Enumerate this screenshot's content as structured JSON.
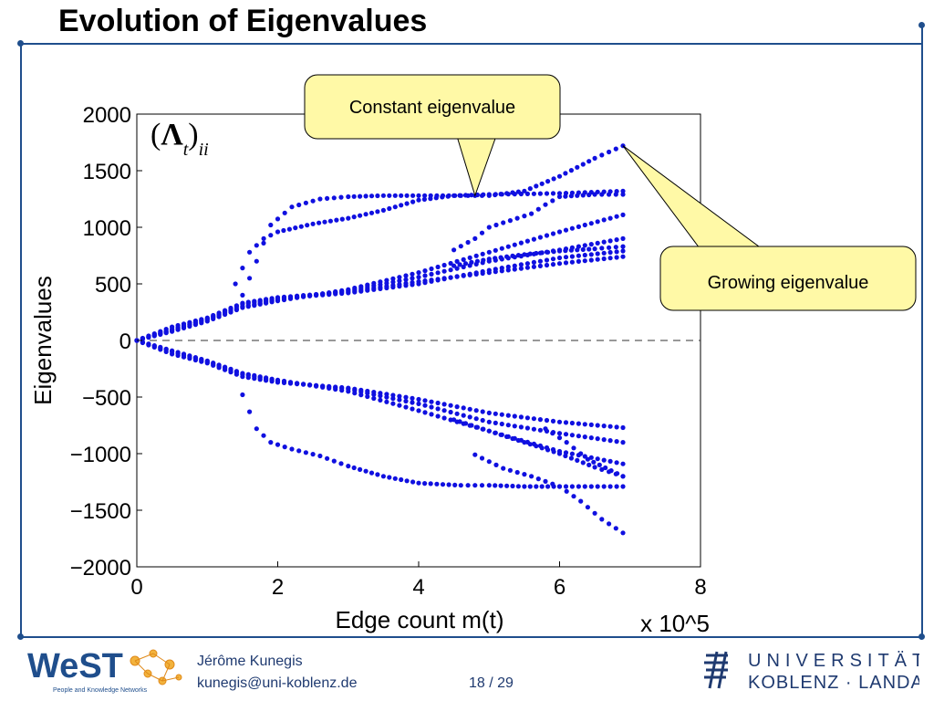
{
  "slide": {
    "title": "Evolution of Eigenvalues",
    "author": "Jérôme Kunegis",
    "email": "kunegis@uni-koblenz.de",
    "page": "18 / 29",
    "frame_color": "#1f4e8c"
  },
  "logos": {
    "west_text": "WeST",
    "west_tagline": "People and Knowledge Networks",
    "university_line1": "UNIVERSITÄT",
    "university_line2": "KOBLENZ · LANDAU"
  },
  "chart_data": {
    "type": "scatter",
    "symbol": "(Λt)ii",
    "xlabel": "Edge count m(t)",
    "x_multiplier": "x 10^5",
    "ylabel": "Eigenvalues",
    "xlim": [
      0,
      8
    ],
    "ylim": [
      -2000,
      2000
    ],
    "x_ticks": [
      0,
      2,
      4,
      6,
      8
    ],
    "y_ticks": [
      2000,
      1500,
      1000,
      500,
      0,
      -500,
      -1000,
      -1500,
      -2000
    ],
    "y_tick_labels": [
      "2000",
      "1500",
      "1000",
      "500",
      "0",
      "−500",
      "−1000",
      "−1500",
      "−2000"
    ],
    "zero_line": "dashed",
    "point_color": "#1010e0",
    "x_max_data": 6.9,
    "series": [
      {
        "points": [
          [
            0,
            0
          ],
          [
            0.5,
            120
          ],
          [
            1,
            200
          ],
          [
            1.5,
            330
          ],
          [
            2,
            380
          ],
          [
            3,
            430
          ],
          [
            4,
            520
          ],
          [
            5,
            600
          ],
          [
            6,
            680
          ],
          [
            6.9,
            740
          ]
        ]
      },
      {
        "points": [
          [
            0,
            0
          ],
          [
            0.5,
            100
          ],
          [
            1,
            190
          ],
          [
            1.5,
            320
          ],
          [
            2,
            370
          ],
          [
            3,
            420
          ],
          [
            4,
            500
          ],
          [
            5,
            620
          ],
          [
            6,
            730
          ],
          [
            6.9,
            790
          ]
        ]
      },
      {
        "points": [
          [
            0,
            0
          ],
          [
            0.5,
            90
          ],
          [
            1,
            185
          ],
          [
            1.5,
            300
          ],
          [
            2,
            360
          ],
          [
            3,
            440
          ],
          [
            4,
            560
          ],
          [
            5,
            700
          ],
          [
            6,
            800
          ],
          [
            6.9,
            900
          ]
        ]
      },
      {
        "points": [
          [
            0,
            0
          ],
          [
            0.5,
            80
          ],
          [
            1,
            170
          ],
          [
            1.5,
            290
          ],
          [
            2,
            350
          ],
          [
            3,
            450
          ],
          [
            4,
            600
          ],
          [
            5,
            780
          ],
          [
            6,
            960
          ],
          [
            6.9,
            1110
          ]
        ]
      },
      {
        "points": [
          [
            1.4,
            500
          ],
          [
            1.6,
            780
          ],
          [
            1.8,
            900
          ],
          [
            2,
            960
          ],
          [
            2.5,
            1030
          ],
          [
            3,
            1080
          ],
          [
            3.5,
            1150
          ],
          [
            4,
            1240
          ],
          [
            4.5,
            1280
          ],
          [
            5,
            1290
          ],
          [
            6,
            1300
          ],
          [
            6.9,
            1320
          ]
        ]
      },
      {
        "points": [
          [
            1.5,
            400
          ],
          [
            1.7,
            700
          ],
          [
            1.9,
            1020
          ],
          [
            2.2,
            1180
          ],
          [
            2.6,
            1250
          ],
          [
            3,
            1270
          ],
          [
            3.5,
            1280
          ],
          [
            4,
            1280
          ],
          [
            4.6,
            1280
          ],
          [
            5,
            1280
          ],
          [
            5.5,
            1320
          ],
          [
            6,
            1450
          ],
          [
            6.5,
            1610
          ],
          [
            6.9,
            1720
          ]
        ]
      },
      {
        "points": [
          [
            4.5,
            800
          ],
          [
            4.8,
            900
          ],
          [
            5,
            1000
          ],
          [
            5.3,
            1060
          ],
          [
            5.6,
            1120
          ],
          [
            5.8,
            1200
          ],
          [
            6,
            1270
          ],
          [
            6.5,
            1290
          ],
          [
            6.9,
            1290
          ]
        ]
      },
      {
        "points": [
          [
            4.5,
            660
          ],
          [
            5,
            720
          ],
          [
            5.5,
            760
          ],
          [
            6,
            790
          ],
          [
            6.5,
            810
          ],
          [
            6.9,
            830
          ]
        ]
      },
      {
        "points": [
          [
            0,
            0
          ],
          [
            0.5,
            -120
          ],
          [
            1,
            -200
          ],
          [
            1.5,
            -320
          ],
          [
            2,
            -370
          ],
          [
            3,
            -420
          ],
          [
            4,
            -520
          ],
          [
            5,
            -640
          ],
          [
            6,
            -720
          ],
          [
            6.9,
            -770
          ]
        ]
      },
      {
        "points": [
          [
            0,
            0
          ],
          [
            0.5,
            -100
          ],
          [
            1,
            -190
          ],
          [
            1.5,
            -300
          ],
          [
            2,
            -360
          ],
          [
            3,
            -430
          ],
          [
            4,
            -560
          ],
          [
            5,
            -720
          ],
          [
            6,
            -820
          ],
          [
            6.9,
            -900
          ]
        ]
      },
      {
        "points": [
          [
            0,
            0
          ],
          [
            0.5,
            -90
          ],
          [
            1,
            -180
          ],
          [
            1.5,
            -290
          ],
          [
            2,
            -350
          ],
          [
            3,
            -450
          ],
          [
            4,
            -620
          ],
          [
            5,
            -800
          ],
          [
            6,
            -980
          ],
          [
            6.9,
            -1090
          ]
        ]
      },
      {
        "points": [
          [
            1.5,
            -480
          ],
          [
            1.7,
            -780
          ],
          [
            1.9,
            -900
          ],
          [
            2.2,
            -960
          ],
          [
            2.6,
            -1020
          ],
          [
            3,
            -1110
          ],
          [
            3.5,
            -1200
          ],
          [
            4,
            -1260
          ],
          [
            4.6,
            -1280
          ],
          [
            5,
            -1280
          ],
          [
            5.5,
            -1290
          ],
          [
            6,
            -1290
          ],
          [
            6.9,
            -1290
          ]
        ]
      },
      {
        "points": [
          [
            4.5,
            -700
          ],
          [
            5,
            -800
          ],
          [
            5.5,
            -900
          ],
          [
            6,
            -1000
          ],
          [
            6.5,
            -1120
          ],
          [
            6.9,
            -1200
          ]
        ]
      },
      {
        "points": [
          [
            4.8,
            -1010
          ],
          [
            5.2,
            -1130
          ],
          [
            5.6,
            -1200
          ],
          [
            6,
            -1290
          ],
          [
            6.3,
            -1420
          ],
          [
            6.6,
            -1580
          ],
          [
            6.9,
            -1700
          ]
        ]
      },
      {
        "points": [
          [
            5.8,
            -780
          ],
          [
            6.1,
            -900
          ],
          [
            6.4,
            -1050
          ],
          [
            6.9,
            -1200
          ]
        ]
      }
    ],
    "annotations": [
      {
        "text": "Constant eigenvalue",
        "target": [
          4.8,
          1280
        ]
      },
      {
        "text": "Growing eigenvalue",
        "target": [
          6.9,
          1720
        ]
      }
    ]
  }
}
